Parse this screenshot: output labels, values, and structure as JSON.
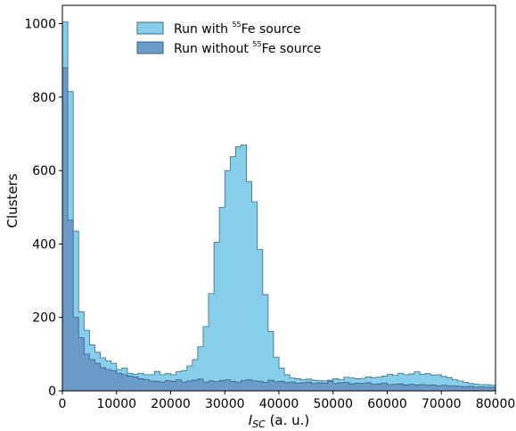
{
  "chart_data": {
    "type": "histogram",
    "title": "",
    "xlabel_main": "I",
    "xlabel_sub": "SC",
    "xlabel_rest": " (a. u.)",
    "ylabel": "Clusters",
    "xlim": [
      0,
      80000
    ],
    "ylim": [
      0,
      1050
    ],
    "xticks": [
      "0",
      "10000",
      "20000",
      "30000",
      "40000",
      "50000",
      "60000",
      "70000",
      "80000"
    ],
    "yticks": [
      "0",
      "200",
      "400",
      "600",
      "800",
      "1000"
    ],
    "grid": false,
    "legend_position": "top-center",
    "bin_width": 1000,
    "series": [
      {
        "name_pre": "Run with ",
        "name_sup": "55",
        "name_post": "Fe source",
        "color": "#87ceeb",
        "edge": "#3d6b80",
        "values": [
          1005,
          815,
          435,
          215,
          165,
          125,
          105,
          90,
          82,
          75,
          58,
          62,
          48,
          45,
          48,
          44,
          44,
          53,
          44,
          47,
          44,
          52,
          55,
          68,
          85,
          120,
          175,
          265,
          405,
          500,
          600,
          638,
          665,
          670,
          570,
          515,
          385,
          262,
          162,
          92,
          62,
          44,
          35,
          33,
          30,
          32,
          29,
          28,
          27,
          29,
          33,
          30,
          37,
          35,
          33,
          34,
          38,
          36,
          37,
          40,
          45,
          42,
          48,
          44,
          46,
          52,
          45,
          47,
          43,
          44,
          39,
          36,
          30,
          27,
          23,
          20,
          18,
          17,
          17,
          15
        ]
      },
      {
        "name_pre": "Run without ",
        "name_sup": "55",
        "name_post": "Fe source",
        "color": "#6b9bc9",
        "edge": "#3a5f86",
        "values": [
          880,
          465,
          200,
          145,
          100,
          85,
          75,
          63,
          58,
          55,
          48,
          44,
          40,
          38,
          33,
          31,
          27,
          26,
          24,
          28,
          26,
          30,
          24,
          27,
          29,
          32,
          24,
          27,
          25,
          28,
          30,
          26,
          24,
          28,
          30,
          27,
          26,
          23,
          29,
          25,
          26,
          22,
          24,
          21,
          22,
          24,
          20,
          22,
          21,
          26,
          20,
          22,
          23,
          19,
          21,
          20,
          22,
          18,
          19,
          21,
          17,
          18,
          19,
          16,
          18,
          16,
          17,
          15,
          16,
          14,
          15,
          14,
          13,
          12,
          11,
          12,
          10,
          11,
          10,
          9
        ]
      }
    ]
  }
}
